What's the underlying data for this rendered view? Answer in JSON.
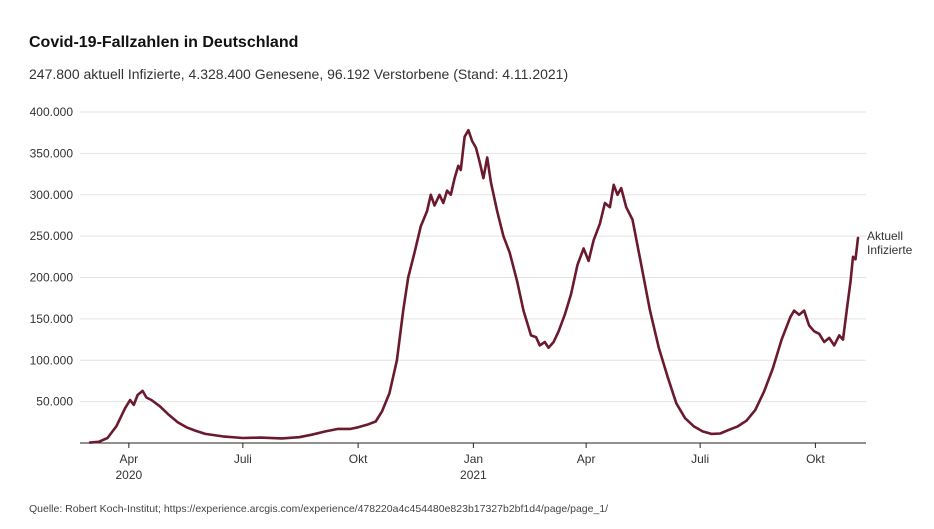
{
  "header": {
    "title": "Covid-19-Fallzahlen in Deutschland",
    "subtitle": "247.800 aktuell Infizierte, 4.328.400 Genesene, 96.192 Verstorbene (Stand: 4.11.2021)"
  },
  "footer": {
    "source": "Quelle: Robert Koch-Institut; https://experience.arcgis.com/experience/478220a4c454480e823b17327b2bf1d4/page/page_1/"
  },
  "colors": {
    "line": "#6b1a2e",
    "grid": "#e3e3e3",
    "axis": "#222222"
  },
  "chart_data": {
    "type": "line",
    "title": "Covid-19-Fallzahlen in Deutschland",
    "xlabel": "",
    "ylabel": "",
    "grid": true,
    "ylim": [
      0,
      400000
    ],
    "xlim": [
      "2020-03-01",
      "2021-11-04"
    ],
    "y_ticks": [
      {
        "value": 50000,
        "label": "50.000"
      },
      {
        "value": 100000,
        "label": "100.000"
      },
      {
        "value": 150000,
        "label": "150.000"
      },
      {
        "value": 200000,
        "label": "200.000"
      },
      {
        "value": 250000,
        "label": "250.000"
      },
      {
        "value": 300000,
        "label": "300.000"
      },
      {
        "value": 350000,
        "label": "350.000"
      },
      {
        "value": 400000,
        "label": "400.000"
      }
    ],
    "x_ticks": [
      {
        "date": "2020-04-01",
        "label": "Apr",
        "sublabel": "2020"
      },
      {
        "date": "2020-07-01",
        "label": "Juli",
        "sublabel": ""
      },
      {
        "date": "2020-10-01",
        "label": "Okt",
        "sublabel": ""
      },
      {
        "date": "2021-01-01",
        "label": "Jan",
        "sublabel": "2021"
      },
      {
        "date": "2021-04-01",
        "label": "Apr",
        "sublabel": ""
      },
      {
        "date": "2021-07-01",
        "label": "Juli",
        "sublabel": ""
      },
      {
        "date": "2021-10-01",
        "label": "Okt",
        "sublabel": ""
      }
    ],
    "series": [
      {
        "name": "Aktuell Infizierte",
        "points": [
          [
            "2020-03-01",
            500
          ],
          [
            "2020-03-08",
            1500
          ],
          [
            "2020-03-15",
            6000
          ],
          [
            "2020-03-22",
            20000
          ],
          [
            "2020-03-29",
            42000
          ],
          [
            "2020-04-02",
            52000
          ],
          [
            "2020-04-05",
            46000
          ],
          [
            "2020-04-08",
            58000
          ],
          [
            "2020-04-12",
            63000
          ],
          [
            "2020-04-15",
            55000
          ],
          [
            "2020-04-19",
            52000
          ],
          [
            "2020-04-26",
            44000
          ],
          [
            "2020-05-03",
            34000
          ],
          [
            "2020-05-10",
            25000
          ],
          [
            "2020-05-17",
            19000
          ],
          [
            "2020-05-24",
            15000
          ],
          [
            "2020-06-01",
            11000
          ],
          [
            "2020-06-15",
            8000
          ],
          [
            "2020-07-01",
            6000
          ],
          [
            "2020-07-15",
            6500
          ],
          [
            "2020-08-01",
            5500
          ],
          [
            "2020-08-15",
            7000
          ],
          [
            "2020-08-25",
            10000
          ],
          [
            "2020-09-05",
            14000
          ],
          [
            "2020-09-15",
            17000
          ],
          [
            "2020-09-25",
            17000
          ],
          [
            "2020-10-01",
            19000
          ],
          [
            "2020-10-08",
            22000
          ],
          [
            "2020-10-15",
            26000
          ],
          [
            "2020-10-20",
            38000
          ],
          [
            "2020-10-26",
            60000
          ],
          [
            "2020-11-01",
            100000
          ],
          [
            "2020-11-06",
            160000
          ],
          [
            "2020-11-10",
            200000
          ],
          [
            "2020-11-15",
            230000
          ],
          [
            "2020-11-20",
            262000
          ],
          [
            "2020-11-25",
            280000
          ],
          [
            "2020-11-28",
            300000
          ],
          [
            "2020-12-01",
            287000
          ],
          [
            "2020-12-05",
            300000
          ],
          [
            "2020-12-08",
            290000
          ],
          [
            "2020-12-11",
            305000
          ],
          [
            "2020-12-14",
            300000
          ],
          [
            "2020-12-17",
            320000
          ],
          [
            "2020-12-20",
            335000
          ],
          [
            "2020-12-22",
            330000
          ],
          [
            "2020-12-25",
            370000
          ],
          [
            "2020-12-28",
            378000
          ],
          [
            "2020-12-31",
            365000
          ],
          [
            "2021-01-03",
            357000
          ],
          [
            "2021-01-06",
            340000
          ],
          [
            "2021-01-09",
            320000
          ],
          [
            "2021-01-12",
            345000
          ],
          [
            "2021-01-15",
            315000
          ],
          [
            "2021-01-20",
            280000
          ],
          [
            "2021-01-25",
            250000
          ],
          [
            "2021-01-30",
            230000
          ],
          [
            "2021-02-05",
            195000
          ],
          [
            "2021-02-10",
            160000
          ],
          [
            "2021-02-16",
            130000
          ],
          [
            "2021-02-20",
            128000
          ],
          [
            "2021-02-23",
            118000
          ],
          [
            "2021-02-27",
            122000
          ],
          [
            "2021-03-02",
            115000
          ],
          [
            "2021-03-06",
            122000
          ],
          [
            "2021-03-10",
            135000
          ],
          [
            "2021-03-15",
            155000
          ],
          [
            "2021-03-20",
            180000
          ],
          [
            "2021-03-25",
            215000
          ],
          [
            "2021-03-30",
            235000
          ],
          [
            "2021-04-03",
            220000
          ],
          [
            "2021-04-07",
            245000
          ],
          [
            "2021-04-12",
            265000
          ],
          [
            "2021-04-16",
            290000
          ],
          [
            "2021-04-20",
            285000
          ],
          [
            "2021-04-23",
            312000
          ],
          [
            "2021-04-26",
            300000
          ],
          [
            "2021-04-29",
            308000
          ],
          [
            "2021-05-03",
            285000
          ],
          [
            "2021-05-08",
            270000
          ],
          [
            "2021-05-15",
            215000
          ],
          [
            "2021-05-22",
            160000
          ],
          [
            "2021-05-29",
            115000
          ],
          [
            "2021-06-05",
            80000
          ],
          [
            "2021-06-12",
            48000
          ],
          [
            "2021-06-19",
            30000
          ],
          [
            "2021-06-26",
            20000
          ],
          [
            "2021-07-03",
            14000
          ],
          [
            "2021-07-10",
            11000
          ],
          [
            "2021-07-17",
            11500
          ],
          [
            "2021-07-24",
            16000
          ],
          [
            "2021-07-31",
            20000
          ],
          [
            "2021-08-07",
            27000
          ],
          [
            "2021-08-14",
            40000
          ],
          [
            "2021-08-21",
            62000
          ],
          [
            "2021-08-28",
            90000
          ],
          [
            "2021-09-04",
            125000
          ],
          [
            "2021-09-11",
            152000
          ],
          [
            "2021-09-14",
            160000
          ],
          [
            "2021-09-18",
            155000
          ],
          [
            "2021-09-22",
            160000
          ],
          [
            "2021-09-26",
            142000
          ],
          [
            "2021-09-30",
            135000
          ],
          [
            "2021-10-04",
            132000
          ],
          [
            "2021-10-08",
            122000
          ],
          [
            "2021-10-12",
            127000
          ],
          [
            "2021-10-16",
            118000
          ],
          [
            "2021-10-20",
            130000
          ],
          [
            "2021-10-23",
            125000
          ],
          [
            "2021-10-26",
            160000
          ],
          [
            "2021-10-29",
            195000
          ],
          [
            "2021-10-31",
            225000
          ],
          [
            "2021-11-02",
            222000
          ],
          [
            "2021-11-04",
            247800
          ]
        ]
      }
    ],
    "end_label": [
      "Aktuell",
      "Infizierte"
    ]
  }
}
